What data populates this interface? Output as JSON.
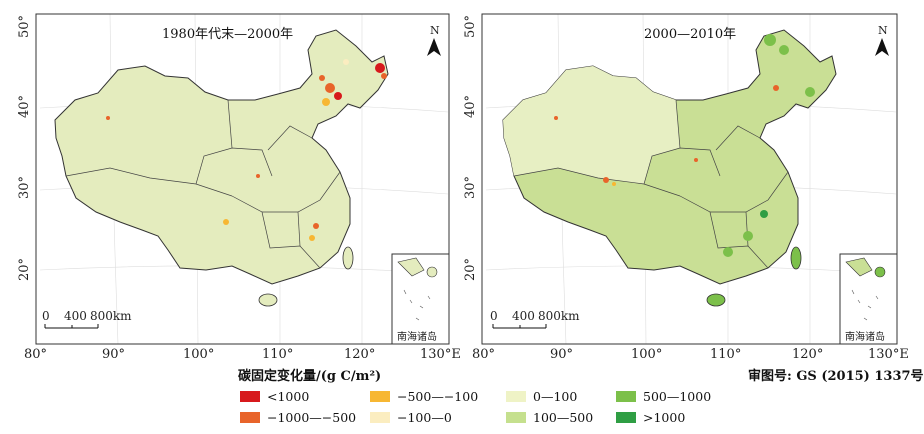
{
  "panels": [
    {
      "title": "1980年代末—2000年",
      "x_ticks": [
        "80°",
        "90°",
        "100°",
        "110°",
        "120°",
        "130°E"
      ],
      "y_ticks": [
        "50°",
        "40°",
        "30°",
        "20°"
      ],
      "north": "N",
      "scale_labels": [
        "0",
        "400",
        "800km"
      ],
      "inset_label": "南海诸岛"
    },
    {
      "title": "2000—2010年",
      "x_ticks": [
        "80°",
        "90°",
        "100°",
        "110°",
        "120°",
        "130°E"
      ],
      "y_ticks": [
        "50°",
        "40°",
        "30°",
        "20°"
      ],
      "north": "N",
      "scale_labels": [
        "0",
        "400",
        "800km"
      ],
      "inset_label": "南海诸岛"
    }
  ],
  "legend": {
    "title": "碳固定变化量/(g C/m²)",
    "items": [
      {
        "label": "<1000",
        "color": "#d7191c"
      },
      {
        "label": "−1000—−500",
        "color": "#e8642a"
      },
      {
        "label": "−500—−100",
        "color": "#f7b733"
      },
      {
        "label": "−100—0",
        "color": "#fbedc0"
      },
      {
        "label": "0—100",
        "color": "#eff3c6"
      },
      {
        "label": "100—500",
        "color": "#c5e08e"
      },
      {
        "label": "500—1000",
        "color": "#7cc04a"
      },
      {
        "label": ">1000",
        "color": "#2f9e44"
      }
    ]
  },
  "approval_number": "审图号: GS (2015) 1337号",
  "map_colors": {
    "panel1_fill": "#e4ecbe",
    "panel2_fill": "#c9df95"
  }
}
